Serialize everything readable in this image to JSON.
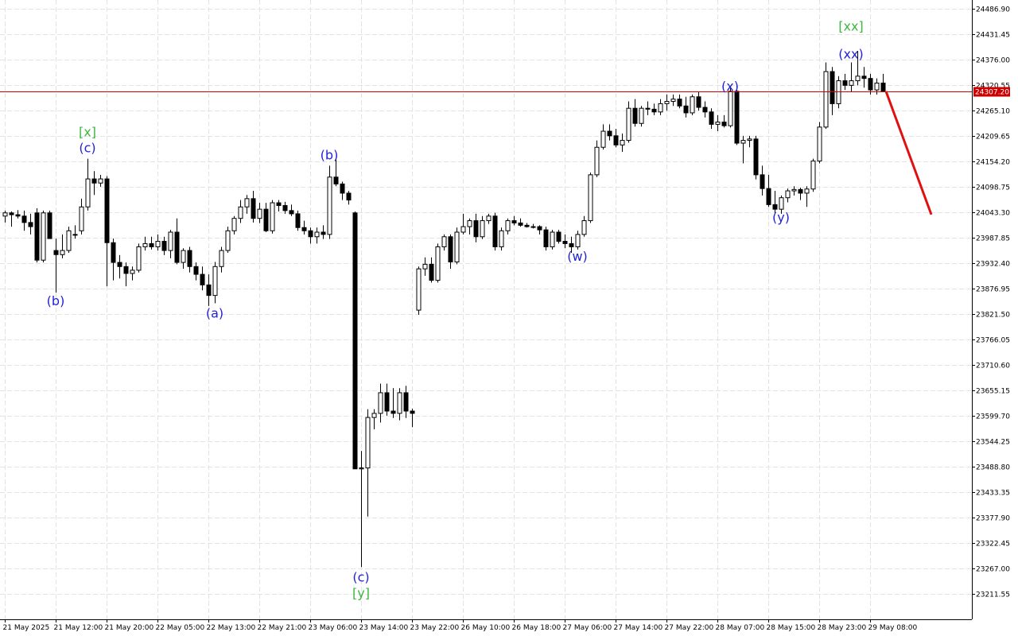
{
  "chart_data": {
    "type": "candlestick",
    "ylim": [
      23156.1,
      24506
    ],
    "yticks": [
      {
        "value": 24486.9,
        "label": "24486.90"
      },
      24431.45,
      {
        "value": 24376,
        "label": "24376.00"
      },
      24320.55,
      {
        "value": 24265.1,
        "label": "24265.10"
      },
      24209.65,
      {
        "value": 24154.2,
        "label": "24154.20"
      },
      24098.75,
      {
        "value": 24043.3,
        "label": "24043.30"
      },
      23987.85,
      {
        "value": 23932.4,
        "label": "23932.40"
      },
      23876.95,
      {
        "value": 23821.5,
        "label": "23821.50"
      },
      23766.05,
      {
        "value": 23710.6,
        "label": "23710.60"
      },
      23655.15,
      {
        "value": 23599.7,
        "label": "23599.70"
      },
      23544.25,
      {
        "value": 23488.8,
        "label": "23488.80"
      },
      23433.35,
      {
        "value": 23377.9,
        "label": "23377.90"
      },
      23322.45,
      {
        "value": 23267,
        "label": "23267.00"
      },
      23211.55
    ],
    "grid": true,
    "bull_color": "#ffffff",
    "bear_color": "#000000",
    "current_price": {
      "value": 24307.2,
      "label": "24307.20",
      "color": "#cc0000"
    },
    "categories": [
      "21 May 2025",
      null,
      null,
      null,
      null,
      null,
      null,
      null,
      "21 May 12:00",
      null,
      null,
      null,
      null,
      null,
      null,
      null,
      "21 May 20:00",
      null,
      null,
      null,
      null,
      null,
      null,
      null,
      "22 May 05:00",
      null,
      null,
      null,
      null,
      null,
      null,
      null,
      "22 May 13:00",
      null,
      null,
      null,
      null,
      null,
      null,
      null,
      "22 May 21:00",
      null,
      null,
      null,
      null,
      null,
      null,
      null,
      "23 May 06:00",
      null,
      null,
      null,
      null,
      null,
      null,
      null,
      "23 May 14:00",
      null,
      null,
      null,
      null,
      null,
      null,
      null,
      "23 May 22:00",
      null,
      null,
      null,
      null,
      null,
      null,
      null,
      "26 May 10:00",
      null,
      null,
      null,
      null,
      null,
      null,
      null,
      "26 May 18:00",
      null,
      null,
      null,
      null,
      null,
      null,
      null,
      "27 May 06:00",
      null,
      null,
      null,
      null,
      null,
      null,
      null,
      "27 May 14:00",
      null,
      null,
      null,
      null,
      null,
      null,
      null,
      "27 May 22:00",
      null,
      null,
      null,
      null,
      null,
      null,
      null,
      "28 May 07:00",
      null,
      null,
      null,
      null,
      null,
      null,
      null,
      "28 May 15:00",
      null,
      null,
      null,
      null,
      null,
      null,
      null,
      "28 May 23:00",
      null,
      null,
      null,
      null,
      null,
      null,
      null,
      "29 May 08:00",
      null,
      null
    ],
    "ohlc": [
      [
        24035,
        24047,
        24021,
        24042
      ],
      [
        24042,
        24045,
        24012,
        24038
      ],
      [
        24038,
        24048,
        24030,
        24035
      ],
      [
        24035,
        24047,
        24003,
        24021
      ],
      [
        24021,
        24040,
        23995,
        24012
      ],
      [
        24042,
        24052,
        23934,
        23939
      ],
      [
        23939,
        24047,
        23934,
        24042
      ],
      [
        24042,
        24047,
        23986,
        23986
      ],
      [
        23960,
        23986,
        23868,
        23951
      ],
      [
        23951,
        23995,
        23943,
        23960
      ],
      [
        23960,
        24012,
        23955,
        24003
      ],
      [
        23995,
        24015,
        23986,
        23995
      ],
      [
        24003,
        24073,
        23995,
        24055
      ],
      [
        24055,
        24160,
        24047,
        24116
      ],
      [
        24116,
        24133,
        24081,
        24107
      ],
      [
        24107,
        24125,
        24099,
        24116
      ],
      [
        24116,
        24122,
        23882,
        23977
      ],
      [
        23977,
        23986,
        23895,
        23934
      ],
      [
        23934,
        23950,
        23899,
        23925
      ],
      [
        23925,
        23934,
        23882,
        23910
      ],
      [
        23910,
        23925,
        23895,
        23917
      ],
      [
        23917,
        23975,
        23912,
        23968
      ],
      [
        23968,
        23990,
        23960,
        23975
      ],
      [
        23975,
        23990,
        23962,
        23968
      ],
      [
        23968,
        23995,
        23960,
        23980
      ],
      [
        23980,
        23990,
        23950,
        23960
      ],
      [
        23960,
        24005,
        23943,
        24000
      ],
      [
        24000,
        24030,
        23930,
        23934
      ],
      [
        23934,
        23965,
        23920,
        23960
      ],
      [
        23960,
        23968,
        23912,
        23925
      ],
      [
        23925,
        23934,
        23895,
        23908
      ],
      [
        23908,
        23925,
        23873,
        23885
      ],
      [
        23885,
        23908,
        23839,
        23862
      ],
      [
        23862,
        23935,
        23845,
        23925
      ],
      [
        23925,
        23968,
        23912,
        23960
      ],
      [
        23960,
        24012,
        23955,
        24003
      ],
      [
        24003,
        24035,
        23995,
        24030
      ],
      [
        24030,
        24070,
        24020,
        24055
      ],
      [
        24055,
        24081,
        24040,
        24073
      ],
      [
        24073,
        24090,
        24021,
        24030
      ],
      [
        24030,
        24064,
        24020,
        24050
      ],
      [
        24050,
        24064,
        24000,
        24003
      ],
      [
        24003,
        24070,
        23997,
        24064
      ],
      [
        24064,
        24070,
        24045,
        24058
      ],
      [
        24058,
        24066,
        24040,
        24047
      ],
      [
        24047,
        24060,
        24035,
        24040
      ],
      [
        24040,
        24047,
        24003,
        24010
      ],
      [
        24010,
        24025,
        23995,
        24003
      ],
      [
        24003,
        24010,
        23975,
        23990
      ],
      [
        23990,
        24010,
        23975,
        24000
      ],
      [
        24000,
        24015,
        23985,
        23995
      ],
      [
        23995,
        24145,
        23985,
        24120
      ],
      [
        24120,
        24159,
        24100,
        24105
      ],
      [
        24105,
        24110,
        24070,
        24085
      ],
      [
        24085,
        24090,
        24060,
        24070
      ],
      [
        24042,
        24045,
        23484,
        23484
      ],
      [
        23484,
        23523,
        23270,
        23486
      ],
      [
        23486,
        23614,
        23380,
        23596
      ],
      [
        23596,
        23614,
        23570,
        23605
      ],
      [
        23605,
        23670,
        23585,
        23650
      ],
      [
        23650,
        23670,
        23600,
        23610
      ],
      [
        23610,
        23660,
        23595,
        23605
      ],
      [
        23605,
        23660,
        23590,
        23650
      ],
      [
        23650,
        23665,
        23595,
        23610
      ],
      [
        23610,
        23615,
        23575,
        23605
      ],
      [
        23830,
        23925,
        23820,
        23920
      ],
      [
        23920,
        23945,
        23905,
        23930
      ],
      [
        23930,
        23945,
        23890,
        23895
      ],
      [
        23895,
        23975,
        23890,
        23968
      ],
      [
        23968,
        23995,
        23960,
        23990
      ],
      [
        23990,
        23995,
        23920,
        23935
      ],
      [
        23935,
        24010,
        23930,
        24000
      ],
      [
        24000,
        24040,
        23995,
        24012
      ],
      [
        24012,
        24030,
        23995,
        24025
      ],
      [
        24025,
        24040,
        23978,
        23990
      ],
      [
        23990,
        24035,
        23985,
        24025
      ],
      [
        24025,
        24040,
        24018,
        24035
      ],
      [
        24035,
        24042,
        23960,
        23968
      ],
      [
        23968,
        24010,
        23960,
        24003
      ],
      [
        24003,
        24030,
        23995,
        24025
      ],
      [
        24025,
        24035,
        24015,
        24020
      ],
      [
        24020,
        24030,
        24012,
        24015
      ],
      [
        24015,
        24020,
        24010,
        24012
      ],
      [
        24012,
        24018,
        24008,
        24012
      ],
      [
        24012,
        24015,
        23995,
        24005
      ],
      [
        24005,
        24012,
        23960,
        23968
      ],
      [
        23968,
        24005,
        23962,
        24000
      ],
      [
        24000,
        24005,
        23975,
        23980
      ],
      [
        23980,
        23995,
        23965,
        23975
      ],
      [
        23975,
        23990,
        23955,
        23968
      ],
      [
        23968,
        24003,
        23962,
        23995
      ],
      [
        23995,
        24035,
        23990,
        24025
      ],
      [
        24025,
        24130,
        24020,
        24125
      ],
      [
        24125,
        24200,
        24120,
        24185
      ],
      [
        24185,
        24235,
        24180,
        24220
      ],
      [
        24220,
        24235,
        24200,
        24210
      ],
      [
        24210,
        24225,
        24185,
        24190
      ],
      [
        24190,
        24215,
        24175,
        24200
      ],
      [
        24200,
        24285,
        24195,
        24270
      ],
      [
        24270,
        24290,
        24230,
        24237
      ],
      [
        24237,
        24275,
        24230,
        24270
      ],
      [
        24270,
        24285,
        24255,
        24268
      ],
      [
        24268,
        24280,
        24255,
        24262
      ],
      [
        24262,
        24290,
        24255,
        24280
      ],
      [
        24280,
        24300,
        24265,
        24285
      ],
      [
        24285,
        24300,
        24275,
        24290
      ],
      [
        24290,
        24300,
        24270,
        24275
      ],
      [
        24275,
        24295,
        24250,
        24260
      ],
      [
        24260,
        24300,
        24255,
        24295
      ],
      [
        24295,
        24305,
        24265,
        24272
      ],
      [
        24272,
        24285,
        24250,
        24262
      ],
      [
        24262,
        24270,
        24225,
        24235
      ],
      [
        24235,
        24255,
        24220,
        24240
      ],
      [
        24240,
        24255,
        24228,
        24232
      ],
      [
        24232,
        24315,
        24228,
        24307
      ],
      [
        24307,
        24320,
        24190,
        24194
      ],
      [
        24194,
        24210,
        24150,
        24200
      ],
      [
        24200,
        24210,
        24185,
        24203
      ],
      [
        24203,
        24210,
        24115,
        24125
      ],
      [
        24125,
        24145,
        24080,
        24095
      ],
      [
        24095,
        24125,
        24055,
        24060
      ],
      [
        24060,
        24090,
        24040,
        24050
      ],
      [
        24050,
        24080,
        24040,
        24075
      ],
      [
        24075,
        24095,
        24065,
        24090
      ],
      [
        24090,
        24100,
        24080,
        24093
      ],
      [
        24093,
        24097,
        24070,
        24085
      ],
      [
        24085,
        24100,
        24055,
        24094
      ],
      [
        24094,
        24160,
        24088,
        24155
      ],
      [
        24155,
        24240,
        24150,
        24229
      ],
      [
        24229,
        24370,
        24225,
        24350
      ],
      [
        24350,
        24360,
        24255,
        24280
      ],
      [
        24280,
        24340,
        24270,
        24330
      ],
      [
        24330,
        24345,
        24310,
        24320
      ],
      [
        24320,
        24370,
        24305,
        24330
      ],
      [
        24330,
        24395,
        24320,
        24340
      ],
      [
        24340,
        24360,
        24315,
        24335
      ],
      [
        24335,
        24345,
        24300,
        24310
      ],
      [
        24310,
        24335,
        24300,
        24325
      ],
      [
        24325,
        24345,
        24305,
        24307
      ]
    ],
    "annotations": [
      {
        "text": "[x]",
        "color": "#3cb83c"
      },
      {
        "text": "(c)",
        "color": "#2323d6"
      },
      {
        "text": "(b)",
        "color": "#2323d6"
      },
      {
        "text": "(a)",
        "color": "#2323d6"
      },
      {
        "text": "(b)",
        "color": "#2323d6"
      },
      {
        "text": "(c)",
        "color": "#2323d6"
      },
      {
        "text": "[y]",
        "color": "#3cb83c"
      },
      {
        "text": "(w)",
        "color": "#2323d6"
      },
      {
        "text": "(x)",
        "color": "#2323d6"
      },
      {
        "text": "(y)",
        "color": "#2323d6"
      },
      {
        "text": "(xx)",
        "color": "#2323d6"
      },
      {
        "text": "[xx]",
        "color": "#3cb83c"
      }
    ]
  }
}
